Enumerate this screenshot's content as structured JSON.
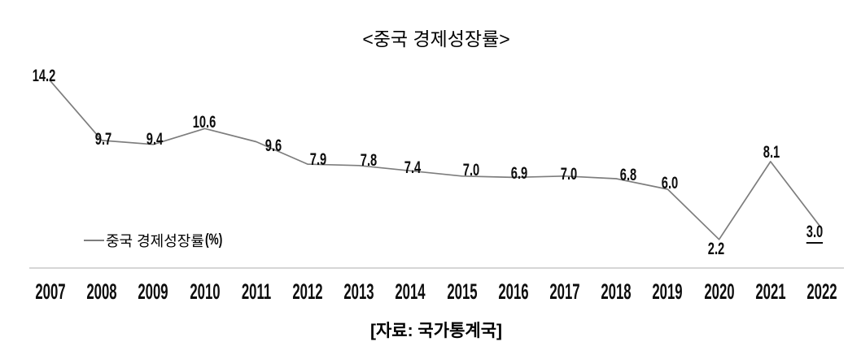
{
  "header": {
    "title": "<중국 경제성장률>"
  },
  "legend": {
    "label": "중국 경제성장률",
    "unit": "(%)"
  },
  "footer": {
    "source": "[자료: 국가통계국]"
  },
  "chart_data": {
    "type": "line",
    "title": "<중국 경제성장률>",
    "categories": [
      "2007",
      "2008",
      "2009",
      "2010",
      "2011",
      "2012",
      "2013",
      "2014",
      "2015",
      "2016",
      "2017",
      "2018",
      "2019",
      "2020",
      "2021",
      "2022"
    ],
    "series": [
      {
        "name": "중국 경제성장률(%)",
        "values": [
          14.2,
          9.7,
          9.4,
          10.6,
          9.6,
          7.9,
          7.8,
          7.4,
          7.0,
          6.9,
          7.0,
          6.8,
          6.0,
          2.2,
          8.1,
          3.0
        ]
      }
    ],
    "xlabel": "",
    "ylabel": "",
    "ylim": [
      0,
      16.5
    ],
    "grid": false,
    "markers": false,
    "data_labels": true,
    "data_label_decimals": 1,
    "underlined_label_category": "2022",
    "legend_position": "inside-bottom-left",
    "colors": {
      "line": "#7d7d7d",
      "axis": "#c9c9c9",
      "data_label": "#0d0d0d",
      "text": "#000000"
    }
  }
}
